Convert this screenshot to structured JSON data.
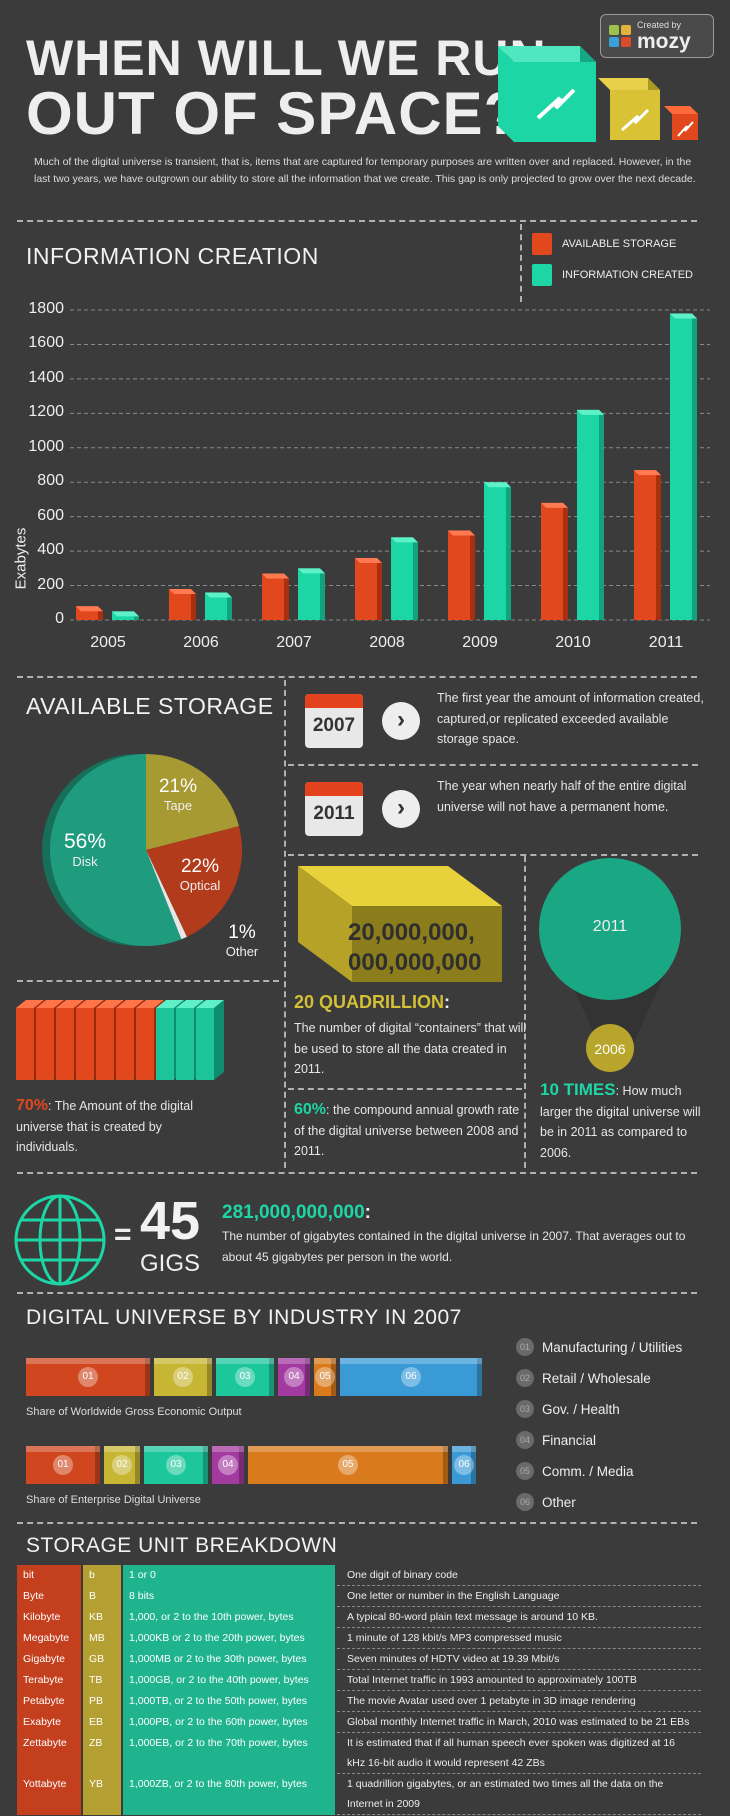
{
  "header": {
    "title_line1": "WHEN WILL WE RUN",
    "title_line2": "OUT OF SPACE?",
    "badge_small": "Created by",
    "badge_brand": "mozy",
    "intro": "Much of the digital universe is transient, that is, items that are captured for temporary purposes are written over and replaced. However, in the last two years, we have outgrown our ability to store all the information that we create.  This gap is only projected to grow over the next decade."
  },
  "colors": {
    "storage": "#e2481d",
    "created": "#1dd6a6",
    "olive": "#c4b232",
    "bg": "#3b3b3b"
  },
  "info_creation": {
    "title": "INFORMATION CREATION",
    "legend_storage": "AVAILABLE STORAGE",
    "legend_created": "INFORMATION CREATED"
  },
  "chart_data": {
    "type": "bar",
    "categories": [
      "2005",
      "2006",
      "2007",
      "2008",
      "2009",
      "2010",
      "2011"
    ],
    "series": [
      {
        "name": "AVAILABLE STORAGE",
        "values": [
          80,
          180,
          270,
          360,
          520,
          680,
          870
        ]
      },
      {
        "name": "INFORMATION CREATED",
        "values": [
          50,
          160,
          300,
          480,
          800,
          1220,
          1780
        ]
      }
    ],
    "ylabel": "Exabytes",
    "yticks": [
      "0",
      "200",
      "400",
      "600",
      "800",
      "1000",
      "1200",
      "1400",
      "1600",
      "1800"
    ],
    "ylim": [
      0,
      1800
    ]
  },
  "available_storage": {
    "title": "AVAILABLE STORAGE",
    "slices": [
      {
        "pct": "56%",
        "label": "Disk",
        "value": 56,
        "color": "#1f9c7e"
      },
      {
        "pct": "21%",
        "label": "Tape",
        "value": 21,
        "color": "#a89a33"
      },
      {
        "pct": "22%",
        "label": "Optical",
        "value": 22,
        "color": "#b23b1c"
      },
      {
        "pct": "1%",
        "label": "Other",
        "value": 1,
        "color": "#e6e6e6"
      }
    ]
  },
  "facts": {
    "y2007": "2007",
    "y2007_text": "The first year the amount of information created, captured,or replicated exceeded available storage space.",
    "y2011": "2011",
    "y2011_text": "The year when nearly half of the entire digital universe will not have a permanent home.",
    "big_number_1": "20,000,000,",
    "big_number_2": "000,000,000",
    "quadrillion_title": "20 QUADRILLION",
    "quadrillion_text": "The number of digital “containers” that will be used to store all the data created in 2011.",
    "growth_pct": "60%",
    "growth_text": ": the compound annual growth rate of the digital universe between 2008 and 2011.",
    "circle_big": "2011",
    "circle_small": "2006",
    "times_title": "10 TIMES",
    "times_text": ": How much larger the digital universe will be in 2011 as compared to 2006.",
    "individuals_pct": "70%",
    "individuals_text": ": The Amount of the digital universe that is created by individuals."
  },
  "gigs": {
    "equals": "=",
    "number": "45",
    "unit": "GIGS",
    "headline": "281,000,000,000",
    "colon": ":",
    "text": "The number of gigabytes contained in the digital universe in 2007. That averages out to about 45 gigabytes per person in the world."
  },
  "industry": {
    "title": "DIGITAL UNIVERSE BY INDUSTRY IN 2007",
    "caption_top": "Share of Worldwide Gross Economic Output",
    "caption_bottom": "Share of Enterprise Digital Universe",
    "legend": [
      {
        "num": "01",
        "label": "Manufacturing / Utilities",
        "color": "#d0461f"
      },
      {
        "num": "02",
        "label": "Retail / Wholesale",
        "color": "#c7b633"
      },
      {
        "num": "03",
        "label": "Gov. / Health",
        "color": "#1dc79c"
      },
      {
        "num": "04",
        "label": "Financial",
        "color": "#a33aa0"
      },
      {
        "num": "05",
        "label": "Comm. / Media",
        "color": "#d97a1c"
      },
      {
        "num": "06",
        "label": "Other",
        "color": "#3a9ad6"
      }
    ]
  },
  "units": {
    "title": "STORAGE UNIT BREAKDOWN",
    "rows": [
      {
        "name": "bit",
        "abbr": "b",
        "size": "1 or 0",
        "example": "One digit of binary code"
      },
      {
        "name": "Byte",
        "abbr": "B",
        "size": "8 bits",
        "example": "One letter or number in the English Language"
      },
      {
        "name": "Kilobyte",
        "abbr": "KB",
        "size": "1,000, or 2 to the 10th power, bytes",
        "example": "A typical 80-word plain text message is around 10 KB."
      },
      {
        "name": "Megabyte",
        "abbr": "MB",
        "size": "1,000KB or 2 to the 20th power, bytes",
        "example": "1 minute of 128 kbit/s MP3 compressed music"
      },
      {
        "name": "Gigabyte",
        "abbr": "GB",
        "size": "1,000MB or 2 to the 30th power, bytes",
        "example": "Seven minutes of HDTV video at 19.39 Mbit/s"
      },
      {
        "name": "Terabyte",
        "abbr": "TB",
        "size": "1,000GB, or 2 to the 40th power, bytes",
        "example": "Total Internet traffic in 1993 amounted to approximately 100TB"
      },
      {
        "name": "Petabyte",
        "abbr": "PB",
        "size": "1,000TB, or 2 to the 50th power, bytes",
        "example": "The movie Avatar used over 1 petabyte in 3D image rendering"
      },
      {
        "name": "Exabyte",
        "abbr": "EB",
        "size": "1,000PB, or 2 to the 60th power, bytes",
        "example": "Global monthly Internet traffic in March, 2010 was estimated to be 21 EBs"
      },
      {
        "name": "Zettabyte",
        "abbr": "ZB",
        "size": "1,000EB, or 2 to the 70th power, bytes",
        "example": "It is estimated that if all human speech ever spoken was digitized at 16 kHz 16-bit audio it would represent 42 ZBs"
      },
      {
        "name": "Yottabyte",
        "abbr": "YB",
        "size": "1,000ZB, or 2 to the 80th power, bytes",
        "example": "1 quadrillion gigabytes, or an estimated two times all the data on the Internet in 2009"
      }
    ]
  }
}
